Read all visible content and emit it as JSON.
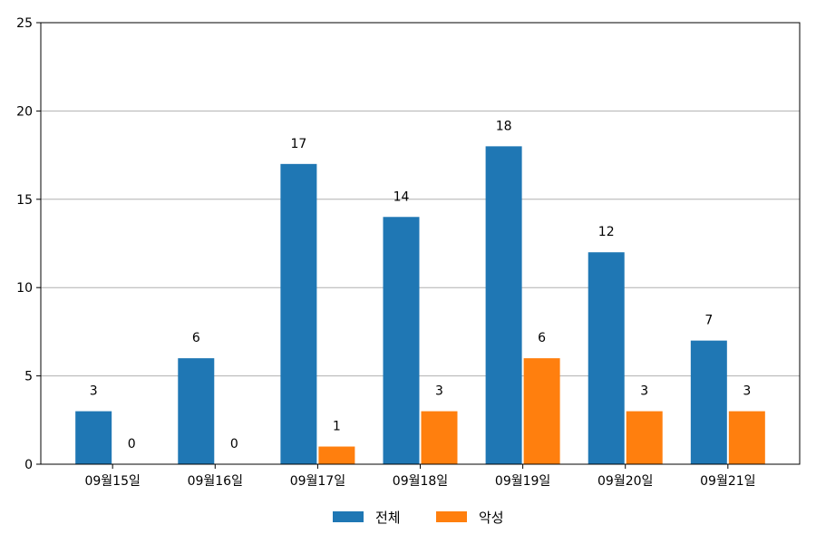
{
  "chart_data": {
    "type": "bar",
    "categories": [
      "09월15일",
      "09월16일",
      "09월17일",
      "09월18일",
      "09월19일",
      "09월20일",
      "09월21일"
    ],
    "series": [
      {
        "name": "전체",
        "color": "#1f77b4",
        "values": [
          3,
          6,
          17,
          14,
          18,
          12,
          7
        ]
      },
      {
        "name": "악성",
        "color": "#ff7f0e",
        "values": [
          0,
          0,
          1,
          3,
          6,
          3,
          3
        ]
      }
    ],
    "ylim": [
      0,
      25
    ],
    "yticks": [
      0,
      5,
      10,
      15,
      20,
      25
    ],
    "grid": true,
    "legend_position": "bottom-center",
    "data_labels": true
  }
}
